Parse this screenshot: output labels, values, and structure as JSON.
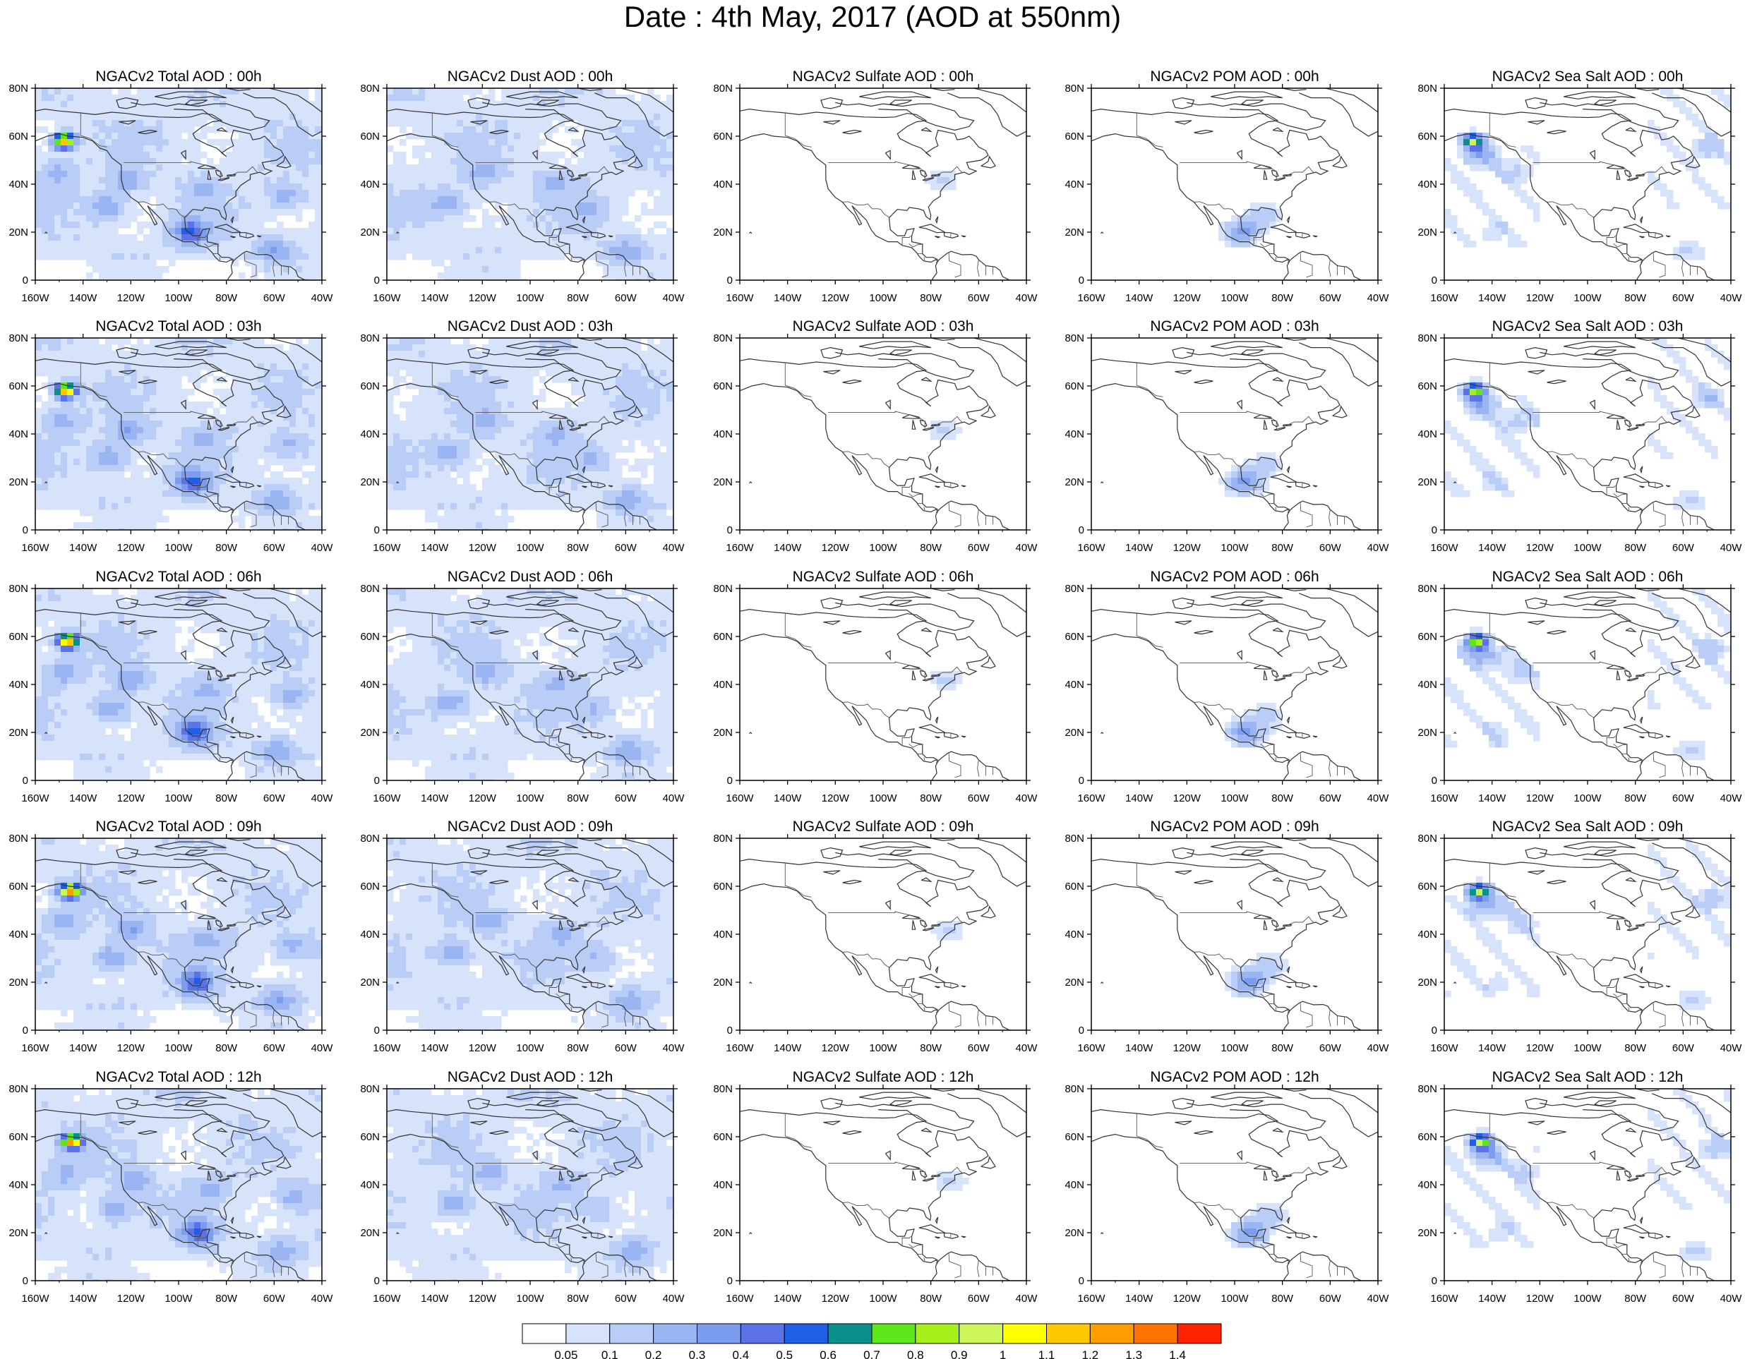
{
  "figure": {
    "title": "Date : 4th May, 2017 (AOD at 550nm)"
  },
  "axes": {
    "lon_ticks": [
      "160W",
      "140W",
      "120W",
      "100W",
      "80W",
      "60W",
      "40W"
    ],
    "lat_ticks": [
      "80N",
      "60N",
      "40N",
      "20N",
      "0"
    ],
    "lon_range": [
      -160,
      -40
    ],
    "lat_range": [
      0,
      80
    ]
  },
  "species_order": [
    "total",
    "dust",
    "sulfate",
    "pom",
    "seasalt"
  ],
  "panels": [
    [
      "NGACv2 Total AOD : 00h",
      "NGACv2 Dust AOD : 00h",
      "NGACv2 Sulfate AOD : 00h",
      "NGACv2 POM AOD : 00h",
      "NGACv2 Sea Salt AOD : 00h"
    ],
    [
      "NGACv2 Total AOD : 03h",
      "NGACv2 Dust AOD : 03h",
      "NGACv2 Sulfate AOD : 03h",
      "NGACv2 POM AOD : 03h",
      "NGACv2 Sea Salt AOD : 03h"
    ],
    [
      "NGACv2 Total AOD : 06h",
      "NGACv2 Dust AOD : 06h",
      "NGACv2 Sulfate AOD : 06h",
      "NGACv2 POM AOD : 06h",
      "NGACv2 Sea Salt AOD : 06h"
    ],
    [
      "NGACv2 Total AOD : 09h",
      "NGACv2 Dust AOD : 09h",
      "NGACv2 Sulfate AOD : 09h",
      "NGACv2 POM AOD : 09h",
      "NGACv2 Sea Salt  AOD : 09h"
    ],
    [
      "NGACv2 Total AOD  : 12h",
      "NGACv2 Dust AOD : 12h",
      "NGACv2 Sulfate AOD : 12h",
      "NGACv2 POM  AOD : 12h",
      "NGACv2 Sea Salt  AOD : 12h"
    ]
  ],
  "colorbar": {
    "labels": [
      "0.05",
      "0.1",
      "0.2",
      "0.3",
      "0.4",
      "0.5",
      "0.6",
      "0.7",
      "0.8",
      "0.9",
      "1",
      "1.1",
      "1.2",
      "1.3",
      "1.4"
    ],
    "colors": [
      "#ffffff",
      "#d7e3fa",
      "#b9cdf7",
      "#9bb5f3",
      "#7b9cef",
      "#5e72e8",
      "#1f5fe6",
      "#0a8f8f",
      "#5ee61a",
      "#a6ef1a",
      "#cdf55a",
      "#ffff00",
      "#ffc800",
      "#ff9e00",
      "#ff7300",
      "#ff2200"
    ]
  },
  "fields": {
    "total": {
      "background": 0.08,
      "blobs": [
        {
          "lon": -130,
          "lat": 30,
          "value": 0.25
        },
        {
          "lon": -122,
          "lat": 42,
          "value": 0.22
        },
        {
          "lon": -150,
          "lat": 45,
          "value": 0.18
        },
        {
          "lon": -90,
          "lat": 38,
          "value": 0.16
        },
        {
          "lon": -55,
          "lat": 35,
          "value": 0.18
        },
        {
          "lon": -60,
          "lat": 12,
          "value": 0.22
        },
        {
          "lon": -95,
          "lat": 20,
          "value": 0.45
        },
        {
          "lon": -148,
          "lat": 58,
          "value": 1.2
        }
      ]
    },
    "dust": {
      "background": 0.08,
      "blobs": [
        {
          "lon": -135,
          "lat": 32,
          "value": 0.22
        },
        {
          "lon": -120,
          "lat": 45,
          "value": 0.18
        },
        {
          "lon": -90,
          "lat": 40,
          "value": 0.16
        },
        {
          "lon": -60,
          "lat": 12,
          "value": 0.2
        },
        {
          "lon": -75,
          "lat": 30,
          "value": 0.14
        }
      ]
    },
    "sulfate": {
      "background": 0.0,
      "blobs": [
        {
          "lon": -75,
          "lat": 42,
          "value": 0.12
        }
      ]
    },
    "pom": {
      "background": 0.0,
      "blobs": [
        {
          "lon": -97,
          "lat": 20,
          "value": 0.35
        },
        {
          "lon": -88,
          "lat": 27,
          "value": 0.15
        }
      ]
    },
    "seasalt": {
      "background": 0.0,
      "blobs": [
        {
          "lon": -148,
          "lat": 58,
          "value": 0.9
        },
        {
          "lon": -145,
          "lat": 52,
          "value": 0.25
        },
        {
          "lon": -130,
          "lat": 45,
          "value": 0.12
        },
        {
          "lon": -50,
          "lat": 55,
          "value": 0.15
        },
        {
          "lon": -58,
          "lat": 12,
          "value": 0.12
        },
        {
          "lon": -140,
          "lat": 20,
          "value": 0.08
        }
      ]
    }
  }
}
